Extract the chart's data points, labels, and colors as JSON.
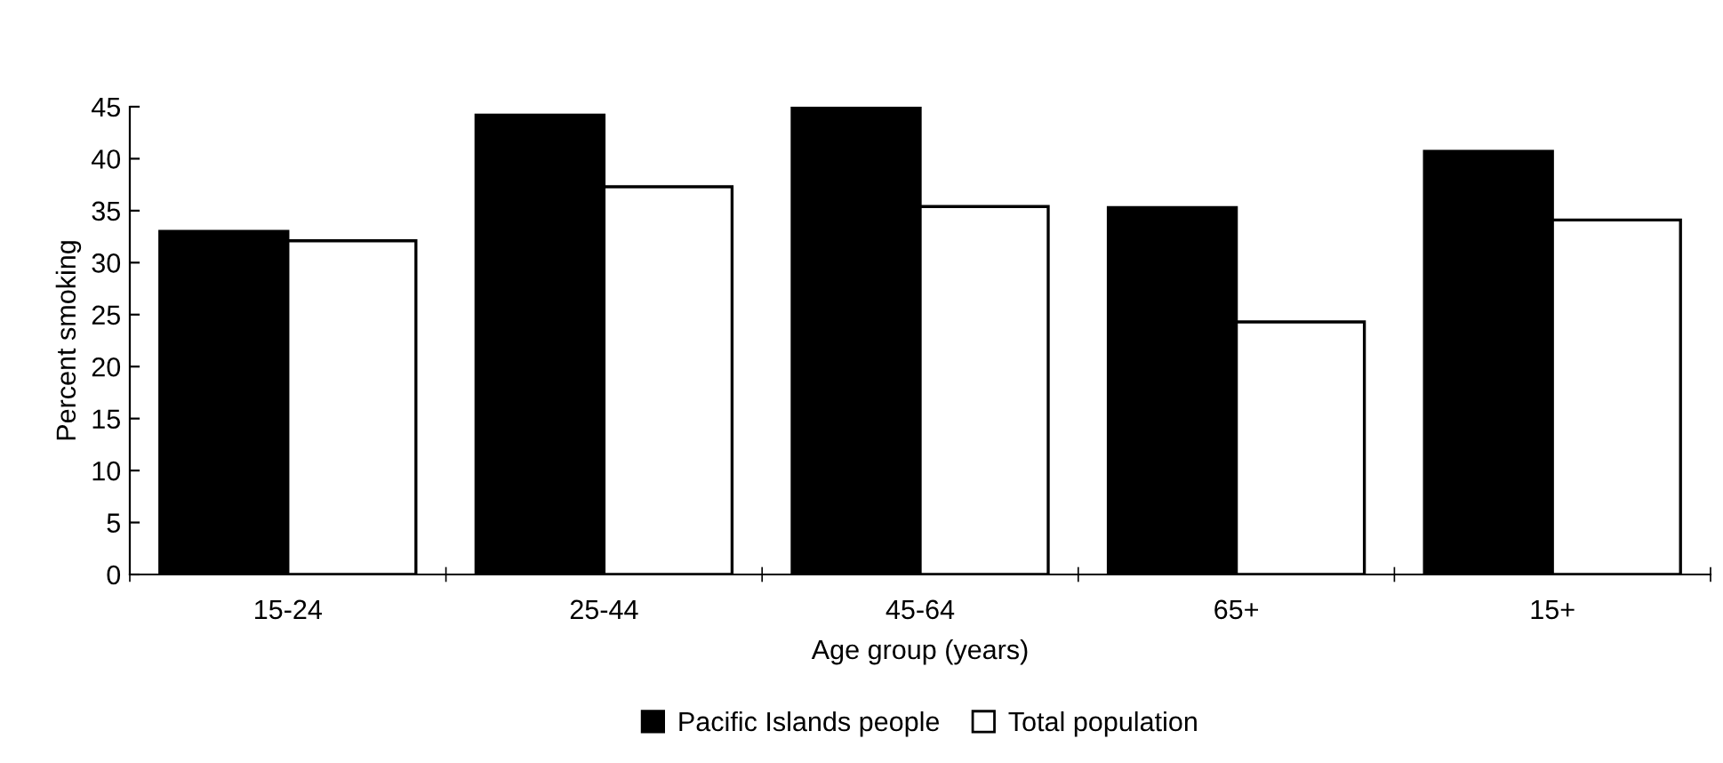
{
  "chart_data": {
    "type": "bar",
    "xlabel": "Age group (years)",
    "ylabel": "Percent smoking",
    "categories": [
      "15-24",
      "25-44",
      "45-64",
      "65+",
      "15+"
    ],
    "series": [
      {
        "name": "Pacific Islands people",
        "color": "#000000",
        "values": [
          33.0,
          44.2,
          45.0,
          35.3,
          40.7
        ]
      },
      {
        "name": "Total population",
        "color": "#ffffff",
        "values": [
          32.1,
          37.3,
          35.4,
          24.3,
          34.1
        ]
      }
    ],
    "ylim": [
      0,
      45
    ],
    "yticks": [
      0,
      5,
      10,
      15,
      20,
      25,
      30,
      35,
      40,
      45
    ],
    "grid": false,
    "legend": "bottom"
  }
}
